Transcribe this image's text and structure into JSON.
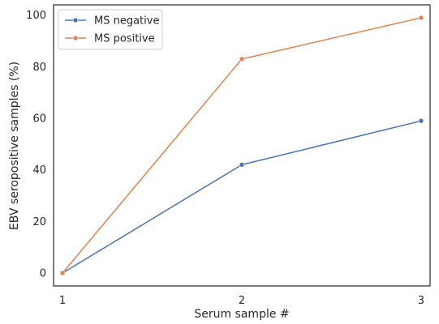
{
  "chart_data": {
    "type": "line",
    "x": [
      1,
      2,
      3
    ],
    "xticks": [
      "1",
      "2",
      "3"
    ],
    "xlabel": "Serum sample #",
    "ylabel": "EBV seropositive samples (%)",
    "xlim": [
      0.95,
      3.05
    ],
    "ylim": [
      -5,
      104
    ],
    "yticks": [
      "0",
      "20",
      "40",
      "60",
      "80",
      "100"
    ],
    "ytick_values": [
      0,
      20,
      40,
      60,
      80,
      100
    ],
    "grid": false,
    "legend_position": "top-left",
    "series": [
      {
        "name": "MS negative",
        "color": "#4c72b0",
        "values": [
          0,
          42,
          59
        ]
      },
      {
        "name": "MS positive",
        "color": "#dd8452",
        "values": [
          0,
          83,
          99
        ]
      }
    ]
  }
}
